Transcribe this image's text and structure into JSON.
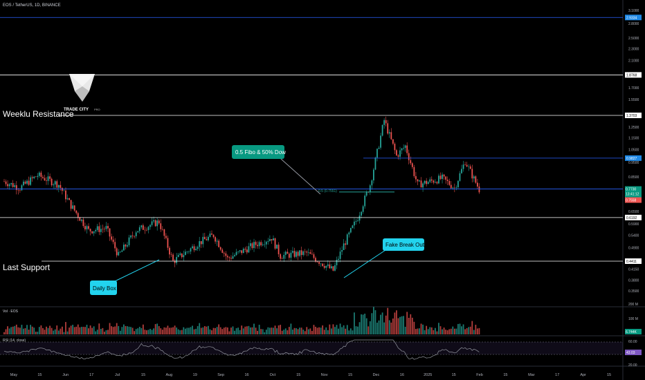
{
  "header": {
    "symbol_line": "EOS / TetherUS, 1D, BINANCE"
  },
  "logo": {
    "text": "TRADE CITY",
    "sub": "PRO"
  },
  "colors": {
    "background": "#000000",
    "up": "#26a69a",
    "down": "#ef5350",
    "line_white": "#ffffff",
    "line_blue": "#2962ff",
    "rsi": "#9598a1",
    "fibo_label_bg": "#089981",
    "cyan_label_bg": "#22d3ee"
  },
  "levels": {
    "weekly_resistance": {
      "label": "Weeklu Resistance",
      "value": 1.3703,
      "badge": "1.3703"
    },
    "last_support": {
      "label": "Last Support",
      "value": 0.4411,
      "badge": "0.4411"
    },
    "top_line": {
      "value": 2.9334,
      "badge": "2.9334"
    },
    "line_1876": {
      "value": 1.8768,
      "badge": "1.8768"
    },
    "line_0619": {
      "value": 0.6192,
      "badge": "0.6192"
    },
    "blue_098": {
      "value": 0.9827,
      "badge": "0.9827"
    },
    "blue_0773": {
      "value": 0.773,
      "badge": "0.7730"
    },
    "fibo_mid": {
      "label": "0.5 (0.7551)",
      "value": 0.7551
    }
  },
  "price_tags": {
    "current": "0.7730",
    "countdown": "13:41:12",
    "low": "0.7558"
  },
  "annotations": {
    "fibo_box": "0.5 Fibo & 50% Dow",
    "daily_box": "Daily Box",
    "fake_break": "Fake Break Out"
  },
  "volume": {
    "label": "Vol · EOS",
    "axis": [
      "200 M",
      "100 M"
    ],
    "badge": "6.744K"
  },
  "rsi": {
    "label": "RSI (14, close)",
    "axis": [
      "60.00",
      "20.00"
    ],
    "badge": "43.03"
  },
  "chart_data": {
    "type": "candlestick",
    "scale": "log",
    "ylim": [
      0.33,
      3.1
    ],
    "y_ticks": [
      3.1,
      2.8,
      2.5,
      2.3,
      2.1,
      1.7,
      1.55,
      1.25,
      1.15,
      1.05,
      0.95,
      0.85,
      0.65,
      0.59,
      0.54,
      0.49,
      0.415,
      0.38,
      0.35
    ],
    "y_tick_labels": [
      "3.1000",
      "2.8000",
      "2.5000",
      "2.3000",
      "2.1000",
      "1.7000",
      "1.5500",
      "1.2500",
      "1.1500",
      "1.0500",
      "0.9500",
      "0.8500",
      "0.6500",
      "0.5900",
      "0.5400",
      "0.4900",
      "0.4150",
      "0.3800",
      "0.3500"
    ],
    "x_ticks": [
      "May",
      "15",
      "Jun",
      "17",
      "Jul",
      "15",
      "Aug",
      "19",
      "Sep",
      "16",
      "Oct",
      "15",
      "Nov",
      "15",
      "Dec",
      "16",
      "2025",
      "15",
      "Feb",
      "15",
      "Mar",
      "17",
      "Apr",
      "15"
    ],
    "x_range": [
      "2024-05-01",
      "2025-04-20"
    ],
    "series_anchors": [
      {
        "date": "2024-05-01",
        "price": 0.82
      },
      {
        "date": "2024-05-10",
        "price": 0.78
      },
      {
        "date": "2024-05-20",
        "price": 0.86
      },
      {
        "date": "2024-06-01",
        "price": 0.8
      },
      {
        "date": "2024-06-08",
        "price": 0.68
      },
      {
        "date": "2024-06-18",
        "price": 0.56
      },
      {
        "date": "2024-06-28",
        "price": 0.57
      },
      {
        "date": "2024-07-05",
        "price": 0.46
      },
      {
        "date": "2024-07-15",
        "price": 0.56
      },
      {
        "date": "2024-07-28",
        "price": 0.6
      },
      {
        "date": "2024-08-05",
        "price": 0.44
      },
      {
        "date": "2024-08-20",
        "price": 0.51
      },
      {
        "date": "2024-08-28",
        "price": 0.54
      },
      {
        "date": "2024-09-05",
        "price": 0.45
      },
      {
        "date": "2024-09-20",
        "price": 0.5
      },
      {
        "date": "2024-09-30",
        "price": 0.53
      },
      {
        "date": "2024-10-05",
        "price": 0.46
      },
      {
        "date": "2024-10-20",
        "price": 0.47
      },
      {
        "date": "2024-11-04",
        "price": 0.41
      },
      {
        "date": "2024-11-10",
        "price": 0.5
      },
      {
        "date": "2024-11-18",
        "price": 0.62
      },
      {
        "date": "2024-11-25",
        "price": 0.8
      },
      {
        "date": "2024-12-03",
        "price": 1.32
      },
      {
        "date": "2024-12-10",
        "price": 1.0
      },
      {
        "date": "2024-12-15",
        "price": 1.08
      },
      {
        "date": "2024-12-22",
        "price": 0.8
      },
      {
        "date": "2025-01-05",
        "price": 0.84
      },
      {
        "date": "2025-01-12",
        "price": 0.78
      },
      {
        "date": "2025-01-18",
        "price": 0.96
      },
      {
        "date": "2025-01-26",
        "price": 0.77
      }
    ]
  }
}
